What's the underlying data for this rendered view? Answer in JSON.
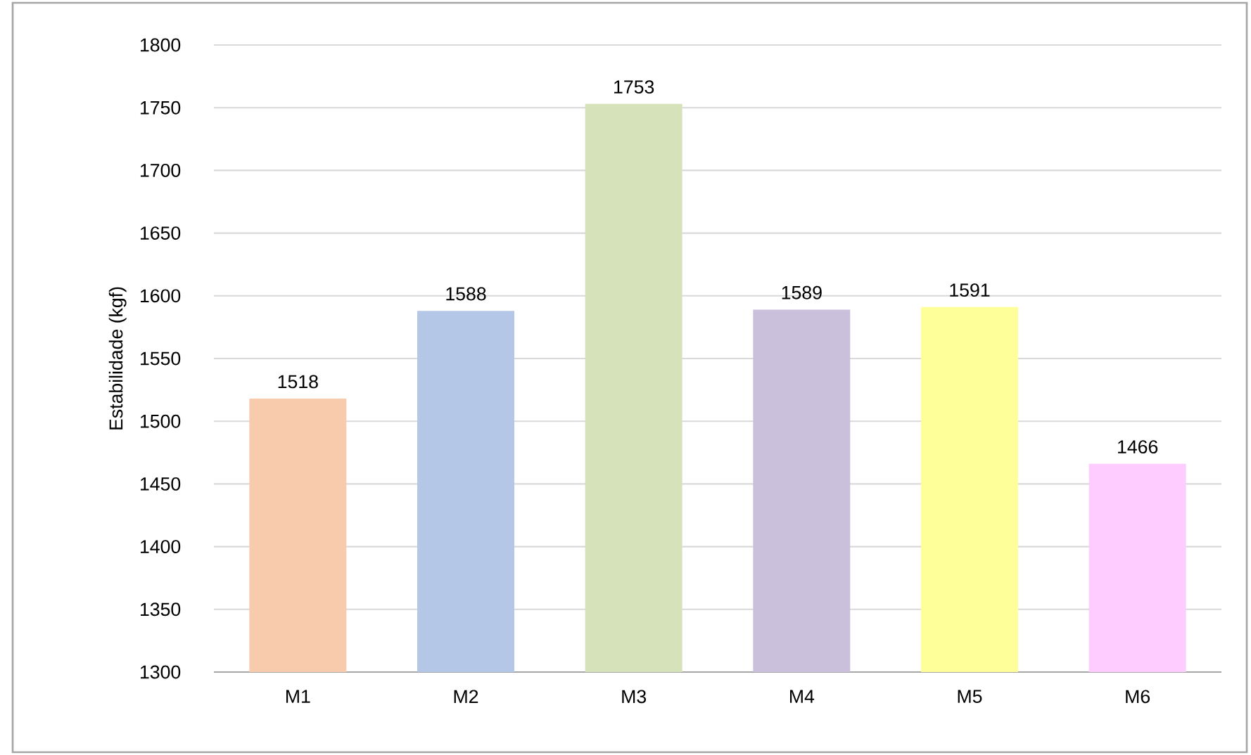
{
  "chart_data": {
    "type": "bar",
    "ylabel": "Estabilidade (kgf)",
    "categories": [
      "M1",
      "M2",
      "M3",
      "M4",
      "M5",
      "M6"
    ],
    "values": [
      1518,
      1588,
      1753,
      1589,
      1591,
      1466
    ],
    "colors": [
      "#f8cbad",
      "#b4c7e7",
      "#d6e2ba",
      "#cbc0dc",
      "#ffff99",
      "#ffccff"
    ],
    "ylim": [
      1300,
      1800
    ],
    "yticks": [
      1300,
      1350,
      1400,
      1450,
      1500,
      1550,
      1600,
      1650,
      1700,
      1750,
      1800
    ],
    "grid": "y",
    "data_labels": true
  }
}
